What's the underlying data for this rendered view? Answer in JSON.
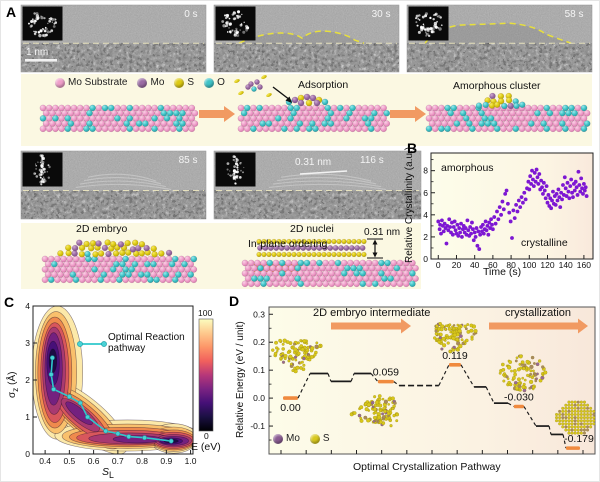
{
  "figure": {
    "panel_labels": {
      "a": "A",
      "b": "B",
      "c": "C",
      "d": "D"
    }
  },
  "panel_a": {
    "frames": [
      {
        "time": "0 s",
        "fft": "ring",
        "scalebar": "1 nm"
      },
      {
        "time": "30 s",
        "fft": "ring",
        "outline": "small"
      },
      {
        "time": "58 s",
        "fft": "ring",
        "outline": "large"
      },
      {
        "time": "85 s",
        "fft": "streak",
        "fringes": true
      },
      {
        "time": "116 s",
        "fft": "streak",
        "fringes": true,
        "annotation": "0.31 nm"
      }
    ],
    "legend": [
      {
        "label": "Mo Substrate",
        "color": "#ef9ec9"
      },
      {
        "label": "Mo",
        "color": "#9a6ba3"
      },
      {
        "label": "S",
        "color": "#ddca12"
      },
      {
        "label": "O",
        "color": "#3ec3c7"
      }
    ],
    "labels": {
      "adsorption": "Adsorption",
      "amorphous_cluster": "Amorphous cluster",
      "embryo": "2D embryo",
      "ordering": "In-plane ordering",
      "nuclei": "2D nuclei",
      "spacing": "0.31 nm"
    }
  },
  "chart_data": [
    {
      "id": "relative-crystallinity",
      "type": "scatter",
      "xlabel": "Time (s)",
      "ylabel": "Relative Crystallinity (a.u.)",
      "xlim": [
        -8,
        170
      ],
      "ylim": [
        0,
        9.6
      ],
      "xticks": [
        0,
        20,
        40,
        60,
        80,
        100,
        120,
        140,
        160
      ],
      "yticks": [
        0,
        2,
        4,
        6,
        8
      ],
      "grid": false,
      "point_color": "#7d17d3",
      "annotations": [
        {
          "text": "amorphous"
        },
        {
          "text": "crystalline"
        }
      ],
      "points": [
        [
          0,
          3.4
        ],
        [
          1.5,
          2.7
        ],
        [
          2,
          3.1
        ],
        [
          3,
          2.3
        ],
        [
          4,
          3.5
        ],
        [
          5,
          3.0
        ],
        [
          6,
          2.5
        ],
        [
          7,
          3.2
        ],
        [
          8,
          2.8
        ],
        [
          9,
          1.4
        ],
        [
          10,
          3.0
        ],
        [
          11,
          2.6
        ],
        [
          12,
          3.6
        ],
        [
          13,
          2.9
        ],
        [
          14,
          2.4
        ],
        [
          15,
          3.3
        ],
        [
          16,
          2.2
        ],
        [
          17,
          2.9
        ],
        [
          18,
          3.4
        ],
        [
          19,
          2.6
        ],
        [
          20,
          2.3
        ],
        [
          21,
          3.1
        ],
        [
          22,
          2.1
        ],
        [
          23,
          2.8
        ],
        [
          24,
          2.4
        ],
        [
          25,
          3.2
        ],
        [
          26,
          2.0
        ],
        [
          27,
          2.7
        ],
        [
          28,
          3.0
        ],
        [
          29,
          2.4
        ],
        [
          30,
          2.8
        ],
        [
          31,
          2.2
        ],
        [
          32,
          3.5
        ],
        [
          33,
          2.6
        ],
        [
          34,
          2.1
        ],
        [
          35,
          2.9
        ],
        [
          36,
          2.3
        ],
        [
          37,
          3.3
        ],
        [
          38,
          2.7
        ],
        [
          39,
          1.7
        ],
        [
          40,
          2.4
        ],
        [
          41,
          2.0
        ],
        [
          42,
          2.8
        ],
        [
          43,
          1.2
        ],
        [
          44,
          2.5
        ],
        [
          45,
          0.9
        ],
        [
          46,
          2.2
        ],
        [
          47,
          2.9
        ],
        [
          48,
          2.5
        ],
        [
          49,
          3.1
        ],
        [
          50,
          2.3
        ],
        [
          51,
          2.7
        ],
        [
          52,
          3.4
        ],
        [
          53,
          2.6
        ],
        [
          54,
          3.0
        ],
        [
          55,
          2.2
        ],
        [
          56,
          3.3
        ],
        [
          57,
          2.8
        ],
        [
          58,
          3.6
        ],
        [
          59,
          3.1
        ],
        [
          60,
          2.7
        ],
        [
          61.5,
          3.8
        ],
        [
          63,
          3.2
        ],
        [
          64.5,
          4.3
        ],
        [
          66,
          3.6
        ],
        [
          67.5,
          4.7
        ],
        [
          69,
          4.0
        ],
        [
          70.5,
          5.2
        ],
        [
          72,
          4.5
        ],
        [
          73.5,
          5.9
        ],
        [
          75,
          6.2
        ],
        [
          76.5,
          5.0
        ],
        [
          78,
          4.2
        ],
        [
          79.5,
          3.4
        ],
        [
          81,
          1.9
        ],
        [
          82.5,
          4.4
        ],
        [
          84,
          3.7
        ],
        [
          85.5,
          4.9
        ],
        [
          87,
          4.3
        ],
        [
          88.5,
          5.3
        ],
        [
          90,
          4.7
        ],
        [
          91.5,
          5.6
        ],
        [
          93,
          5.1
        ],
        [
          94.5,
          6.0
        ],
        [
          96,
          5.4
        ],
        [
          97.5,
          6.4
        ],
        [
          99,
          7.0
        ],
        [
          100,
          6.3
        ],
        [
          101,
          7.5
        ],
        [
          102,
          6.8
        ],
        [
          103,
          8.0
        ],
        [
          104,
          7.2
        ],
        [
          105,
          6.6
        ],
        [
          106,
          7.8
        ],
        [
          107,
          7.0
        ],
        [
          108,
          8.1
        ],
        [
          109,
          7.4
        ],
        [
          110,
          6.8
        ],
        [
          111,
          7.7
        ],
        [
          112,
          6.3
        ],
        [
          113,
          7.1
        ],
        [
          114,
          6.5
        ],
        [
          115,
          5.9
        ],
        [
          116,
          6.9
        ],
        [
          117,
          6.2
        ],
        [
          118,
          5.5
        ],
        [
          119,
          6.6
        ],
        [
          120,
          5.1
        ],
        [
          121,
          5.8
        ],
        [
          122,
          4.8
        ],
        [
          123,
          5.5
        ],
        [
          124,
          4.6
        ],
        [
          125,
          5.3
        ],
        [
          126,
          6.1
        ],
        [
          127,
          5.0
        ],
        [
          128,
          5.7
        ],
        [
          129,
          4.9
        ],
        [
          130,
          5.9
        ],
        [
          131,
          5.3
        ],
        [
          132,
          6.3
        ],
        [
          133,
          5.6
        ],
        [
          134,
          4.7
        ],
        [
          135,
          6.0
        ],
        [
          136,
          5.4
        ],
        [
          137,
          6.7
        ],
        [
          138,
          5.8
        ],
        [
          139,
          7.4
        ],
        [
          140,
          6.4
        ],
        [
          141,
          5.7
        ],
        [
          142,
          6.9
        ],
        [
          143,
          6.1
        ],
        [
          144,
          5.5
        ],
        [
          145,
          6.6
        ],
        [
          146,
          7.2
        ],
        [
          147,
          6.0
        ],
        [
          148,
          5.6
        ],
        [
          149,
          6.8
        ],
        [
          150,
          6.2
        ],
        [
          151,
          7.0
        ],
        [
          152,
          6.5
        ],
        [
          153,
          5.8
        ],
        [
          154,
          7.9
        ],
        [
          155,
          6.7
        ],
        [
          156,
          6.1
        ],
        [
          157,
          7.3
        ],
        [
          158,
          6.4
        ],
        [
          159,
          5.9
        ],
        [
          160,
          6.8
        ],
        [
          161,
          6.2
        ],
        [
          162,
          6.5
        ],
        [
          163,
          5.7
        ]
      ]
    },
    {
      "id": "free-energy-surface",
      "type": "contour",
      "xlabel_main": "S",
      "xlabel_sub": "L",
      "ylabel_sym": "σ",
      "ylabel_sub": "z",
      "ylabel_rest": " (Å)",
      "xlim": [
        0.35,
        1.01
      ],
      "ylim": [
        0,
        4
      ],
      "xticks": [
        0.4,
        0.5,
        0.6,
        0.7,
        0.8,
        0.9,
        1.0
      ],
      "yticks": [
        0,
        1,
        2,
        3,
        4
      ],
      "legend_label": "Optimal Reaction pathway",
      "pathway_color": "#2ec8cc",
      "pathway": [
        [
          0.43,
          2.6
        ],
        [
          0.425,
          2.15
        ],
        [
          0.435,
          1.75
        ],
        [
          0.5,
          1.55
        ],
        [
          0.545,
          1.38
        ],
        [
          0.575,
          1.0
        ],
        [
          0.65,
          0.62
        ],
        [
          0.7,
          0.55
        ],
        [
          0.745,
          0.47
        ],
        [
          0.81,
          0.44
        ],
        [
          0.92,
          0.35
        ]
      ],
      "colorbar": {
        "max_label": "100",
        "min_label": "0",
        "label": "E (eV)",
        "colors": [
          "#fcfdbf",
          "#fec98d",
          "#fd9668",
          "#f1605d",
          "#b73779",
          "#7b2382",
          "#451077",
          "#1a1042",
          "#000004"
        ]
      },
      "levels": [
        {
          "color": "#fce9a9",
          "ellipses": [
            [
              0.45,
              2.2,
              0.105,
              1.8,
              0
            ],
            [
              0.565,
              1.0,
              0.22,
              0.5,
              -40
            ],
            [
              0.74,
              0.5,
              0.3,
              0.42,
              0
            ],
            [
              0.93,
              0.42,
              0.1,
              0.4,
              0
            ]
          ]
        },
        {
          "color": "#f9c06c",
          "ellipses": [
            [
              0.445,
              2.2,
              0.085,
              1.65,
              0
            ],
            [
              0.56,
              1.0,
              0.19,
              0.42,
              -40
            ],
            [
              0.74,
              0.48,
              0.27,
              0.33,
              0
            ],
            [
              0.93,
              0.4,
              0.095,
              0.33,
              0
            ]
          ]
        },
        {
          "color": "#ef8a4d",
          "ellipses": [
            [
              0.44,
              2.2,
              0.07,
              1.5,
              0
            ],
            [
              0.555,
              1.0,
              0.16,
              0.34,
              -40
            ],
            [
              0.74,
              0.46,
              0.24,
              0.26,
              0
            ],
            [
              0.93,
              0.38,
              0.09,
              0.27,
              0
            ]
          ]
        },
        {
          "color": "#d8575c",
          "ellipses": [
            [
              0.44,
              2.2,
              0.058,
              1.35,
              0
            ],
            [
              0.55,
              1.0,
              0.13,
              0.27,
              -40
            ],
            [
              0.74,
              0.44,
              0.21,
              0.2,
              0
            ],
            [
              0.93,
              0.37,
              0.085,
              0.22,
              0
            ]
          ]
        },
        {
          "color": "#a93a70",
          "ellipses": [
            [
              0.437,
              2.25,
              0.047,
              1.18,
              0
            ],
            [
              0.545,
              1.05,
              0.1,
              0.2,
              -40
            ],
            [
              0.75,
              0.42,
              0.17,
              0.15,
              0
            ],
            [
              0.93,
              0.36,
              0.075,
              0.17,
              0
            ]
          ]
        },
        {
          "color": "#74217f",
          "ellipses": [
            [
              0.435,
              2.3,
              0.036,
              0.98,
              0
            ],
            [
              0.54,
              1.1,
              0.07,
              0.13,
              -40
            ],
            [
              0.78,
              0.4,
              0.1,
              0.1,
              0
            ],
            [
              0.93,
              0.355,
              0.062,
              0.125,
              0
            ]
          ]
        },
        {
          "color": "#471078",
          "ellipses": [
            [
              0.433,
              2.45,
              0.026,
              0.6,
              0
            ],
            [
              0.92,
              0.35,
              0.047,
              0.085,
              0
            ]
          ]
        },
        {
          "color": "#1c0c43",
          "ellipses": [
            [
              0.432,
              2.52,
              0.016,
              0.32,
              0
            ],
            [
              0.92,
              0.35,
              0.03,
              0.05,
              0
            ]
          ]
        }
      ]
    },
    {
      "id": "crystallization-pathway",
      "type": "step-line",
      "xlabel": "Optimal Crystallization Pathway",
      "ylabel": "Relative Energy (eV / unit)",
      "ylim": [
        -0.2,
        0.326
      ],
      "yticks": [
        0.3,
        0.2,
        0.1,
        0.0,
        -0.1
      ],
      "marker_color": "#f08a3e",
      "stage_arrows": [
        {
          "text": "2D embryo intermediate"
        },
        {
          "text": "crystallization"
        }
      ],
      "legend": [
        {
          "label": "Mo",
          "color": "#8a5c92"
        },
        {
          "label": "S",
          "color": "#d8c81e"
        }
      ],
      "states": [
        {
          "x": [
            0.043,
            0.089
          ],
          "e": 0.0,
          "marker": true,
          "label": "0.00",
          "label_pos": "below"
        },
        {
          "x": [
            0.126,
            0.181
          ],
          "e": 0.088
        },
        {
          "x": [
            0.19,
            0.252
          ],
          "e": 0.06
        },
        {
          "x": [
            0.261,
            0.313
          ],
          "e": 0.088
        },
        {
          "x": [
            0.334,
            0.383
          ],
          "e": 0.059,
          "marker": true,
          "label": "0.059",
          "label_pos": "above"
        },
        {
          "x": [
            0.399,
            0.521
          ],
          "e": 0.045,
          "style": "dash"
        },
        {
          "x": [
            0.552,
            0.589
          ],
          "e": 0.119,
          "marker": true,
          "label": "0.119",
          "label_pos": "above"
        },
        {
          "x": [
            0.629,
            0.666
          ],
          "e": 0.04
        },
        {
          "x": [
            0.69,
            0.733
          ],
          "e": -0.018
        },
        {
          "x": [
            0.751,
            0.782
          ],
          "e": -0.03,
          "marker": true,
          "label": "-0.030",
          "label_pos": "above"
        },
        {
          "x": [
            0.819,
            0.859
          ],
          "e": -0.1
        },
        {
          "x": [
            0.865,
            0.902
          ],
          "e": -0.13
        },
        {
          "x": [
            0.911,
            0.954
          ],
          "e": -0.179,
          "marker": true,
          "label": "-0.179",
          "label_pos": "above"
        }
      ]
    }
  ]
}
